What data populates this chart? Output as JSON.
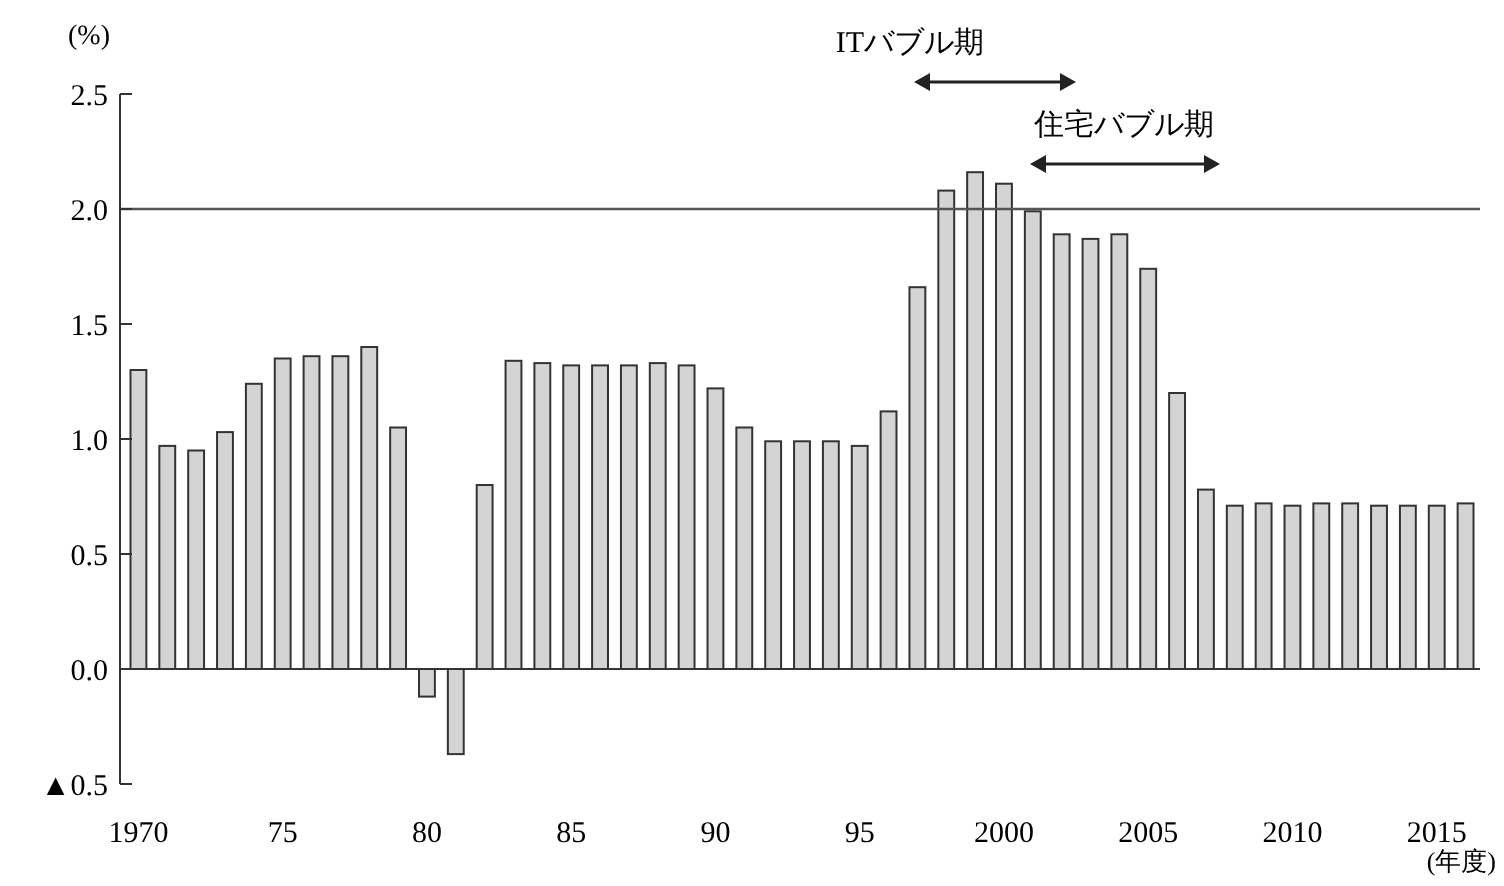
{
  "chart_data": {
    "type": "bar",
    "ylabel": "(%)",
    "xlabel": "(年度)",
    "x": [
      1970,
      1971,
      1972,
      1973,
      1974,
      1975,
      1976,
      1977,
      1978,
      1979,
      1980,
      1981,
      1982,
      1983,
      1984,
      1985,
      1986,
      1987,
      1988,
      1989,
      1990,
      1991,
      1992,
      1993,
      1994,
      1995,
      1996,
      1997,
      1998,
      1999,
      2000,
      2001,
      2002,
      2003,
      2004,
      2005,
      2006,
      2007,
      2008,
      2009,
      2010,
      2011,
      2012,
      2013,
      2014,
      2015,
      2016
    ],
    "values": [
      1.3,
      0.97,
      0.95,
      1.03,
      1.24,
      1.35,
      1.36,
      1.36,
      1.4,
      1.05,
      -0.12,
      -0.37,
      0.8,
      1.34,
      1.33,
      1.32,
      1.32,
      1.32,
      1.33,
      1.32,
      1.22,
      1.05,
      0.99,
      0.99,
      0.99,
      0.97,
      1.12,
      1.66,
      2.08,
      2.16,
      2.11,
      1.99,
      1.89,
      1.87,
      1.89,
      1.74,
      1.2,
      0.78,
      0.71,
      0.72,
      0.71,
      0.72,
      0.72,
      0.71,
      0.71,
      0.71,
      0.72
    ],
    "color": "#d4d4d4",
    "xlim": [
      1969.5,
      2016.5
    ],
    "xticks": [
      {
        "value": 1970,
        "label": "1970"
      },
      {
        "value": 1975,
        "label": "75"
      },
      {
        "value": 1980,
        "label": "80"
      },
      {
        "value": 1985,
        "label": "85"
      },
      {
        "value": 1990,
        "label": "90"
      },
      {
        "value": 1995,
        "label": "95"
      },
      {
        "value": 2000,
        "label": "2000"
      },
      {
        "value": 2005,
        "label": "2005"
      },
      {
        "value": 2010,
        "label": "2010"
      },
      {
        "value": 2015,
        "label": "2015"
      }
    ],
    "ylim": [
      -0.5,
      2.5
    ],
    "yticks": [
      {
        "value": -0.5,
        "label": "▲0.5"
      },
      {
        "value": 0,
        "label": "0.0"
      },
      {
        "value": 0.5,
        "label": "0.5"
      },
      {
        "value": 1,
        "label": "1.0"
      },
      {
        "value": 1.5,
        "label": "1.5"
      },
      {
        "value": 2,
        "label": "2.0"
      },
      {
        "value": 2.5,
        "label": "2.5"
      }
    ],
    "ref_lines": [
      {
        "axis": "y",
        "value": 2.0,
        "color": "#555555"
      }
    ],
    "annotations": [
      "ITバブル期",
      "住宅バブル期"
    ],
    "grid": false
  }
}
